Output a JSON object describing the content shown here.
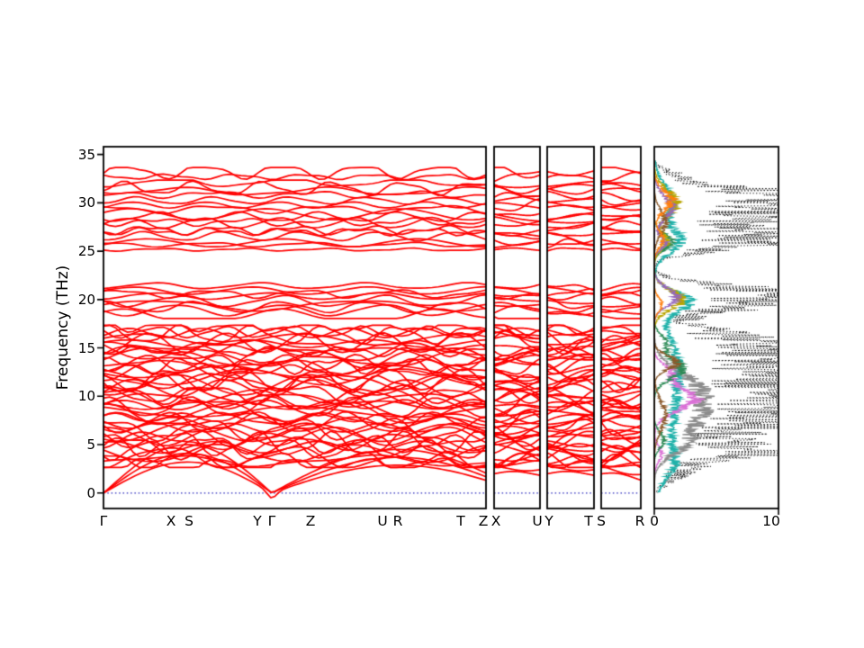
{
  "chart_data": {
    "type": "line",
    "title": "",
    "ylabel": "Frequency (THz)",
    "ylim": [
      -1.6,
      35.8
    ],
    "yticks": [
      0,
      5,
      10,
      15,
      20,
      25,
      30,
      35
    ],
    "band_color": "#ff0000",
    "zero_line_color": "#2222bb",
    "axis_color": "#000000",
    "panels": [
      {
        "name": "main",
        "kpoints": [
          "Γ",
          "X",
          "S",
          "Y",
          "Γ",
          "Z",
          "U",
          "R",
          "T",
          "Z"
        ],
        "fracs": [
          0,
          0.176,
          0.224,
          0.402,
          0.44,
          0.541,
          0.729,
          0.769,
          0.934,
          1.0
        ]
      },
      {
        "name": "XU",
        "kpoints": [
          "X",
          "U"
        ]
      },
      {
        "name": "YT",
        "kpoints": [
          "Y",
          "T"
        ]
      },
      {
        "name": "SR",
        "kpoints": [
          "S",
          "R"
        ]
      }
    ],
    "dos": {
      "xticks": [
        0,
        10
      ],
      "xlim": [
        0,
        10
      ]
    },
    "band_clusters": [
      {
        "name": "acoustic",
        "count": 3,
        "ymin": 0,
        "ymax": 5.0,
        "amp": 0
      },
      {
        "name": "low-dense",
        "count": 52,
        "ymin": 2.8,
        "ymax": 17.2,
        "amp": 1.0
      },
      {
        "name": "mid",
        "count": 9,
        "ymin": 18.2,
        "ymax": 21.6,
        "amp": 0.55
      },
      {
        "name": "high-bottom",
        "count": 1,
        "ymin": 25.0,
        "ymax": 25.3,
        "amp": 0.2
      },
      {
        "name": "high-dense",
        "count": 16,
        "ymin": 25.4,
        "ymax": 32.2,
        "amp": 0.55
      },
      {
        "name": "high-top",
        "count": 2,
        "ymin": 32.4,
        "ymax": 33.5,
        "amp": 0.6
      }
    ],
    "dos_series": [
      {
        "name": "total",
        "color": "#000000",
        "style": "dotted",
        "noise": 1.1,
        "bumps": [
          [
            2.5,
            1.2,
            2.0
          ],
          [
            4.2,
            0.7,
            4.5
          ],
          [
            7,
            2,
            5.5
          ],
          [
            10,
            2,
            6.5
          ],
          [
            13,
            2,
            6.0
          ],
          [
            15.5,
            1.5,
            5.0
          ],
          [
            19.5,
            0.8,
            6.0
          ],
          [
            20.8,
            0.8,
            7.5
          ],
          [
            25.8,
            0.8,
            6.5
          ],
          [
            27.2,
            0.8,
            5.0
          ],
          [
            29.5,
            1.2,
            8.0
          ],
          [
            30.8,
            0.8,
            6.0
          ],
          [
            32.8,
            0.6,
            1.5
          ]
        ]
      },
      {
        "name": "pdos-teal",
        "color": "#20b2aa",
        "style": "solid",
        "noise": 0.5,
        "bumps": [
          [
            3,
            1.5,
            1.0
          ],
          [
            8,
            4,
            1.4
          ],
          [
            14,
            3,
            1.4
          ],
          [
            19.8,
            1.0,
            2.6
          ],
          [
            26,
            1.2,
            2.0
          ],
          [
            30,
            1.8,
            1.4
          ]
        ]
      },
      {
        "name": "pdos-gray",
        "color": "#8c8c8c",
        "style": "solid",
        "noise": 0.5,
        "bumps": [
          [
            8.5,
            2.2,
            3.6
          ],
          [
            5,
            1.2,
            1.6
          ],
          [
            11.5,
            1.5,
            1.8
          ]
        ]
      },
      {
        "name": "pdos-magenta",
        "color": "#da70d6",
        "style": "solid",
        "noise": 0.5,
        "bumps": [
          [
            9.7,
            1.2,
            3.2
          ],
          [
            12.5,
            0.8,
            1.2
          ],
          [
            4,
            0.8,
            0.6
          ]
        ]
      },
      {
        "name": "pdos-green",
        "color": "#2e8b57",
        "style": "solid",
        "noise": 0.5,
        "bumps": [
          [
            12.8,
            1.0,
            2.3
          ],
          [
            5.5,
            0.8,
            0.8
          ],
          [
            26,
            0.8,
            1.4
          ],
          [
            15.5,
            0.8,
            1.0
          ]
        ]
      },
      {
        "name": "pdos-olive",
        "color": "#b8a500",
        "style": "solid",
        "noise": 0.5,
        "bumps": [
          [
            20,
            1.0,
            2.2
          ],
          [
            30,
            1.3,
            1.8
          ],
          [
            26,
            0.8,
            1.0
          ]
        ]
      },
      {
        "name": "pdos-purple",
        "color": "#9467bd",
        "style": "solid",
        "noise": 0.5,
        "bumps": [
          [
            20.3,
            0.9,
            1.8
          ],
          [
            29.5,
            1.2,
            1.4
          ],
          [
            25.8,
            0.6,
            0.9
          ]
        ]
      },
      {
        "name": "pdos-brown",
        "color": "#8b5a2b",
        "style": "solid",
        "noise": 0.5,
        "bumps": [
          [
            13.5,
            0.7,
            1.8
          ],
          [
            8,
            1.5,
            0.9
          ],
          [
            28,
            1.2,
            0.9
          ]
        ]
      },
      {
        "name": "pdos-orange",
        "color": "#ff7f0e",
        "style": "solid",
        "noise": 0.5,
        "bumps": [
          [
            30.2,
            1.0,
            1.4
          ],
          [
            26.2,
            0.8,
            0.7
          ],
          [
            19.5,
            0.7,
            0.6
          ]
        ]
      }
    ]
  }
}
